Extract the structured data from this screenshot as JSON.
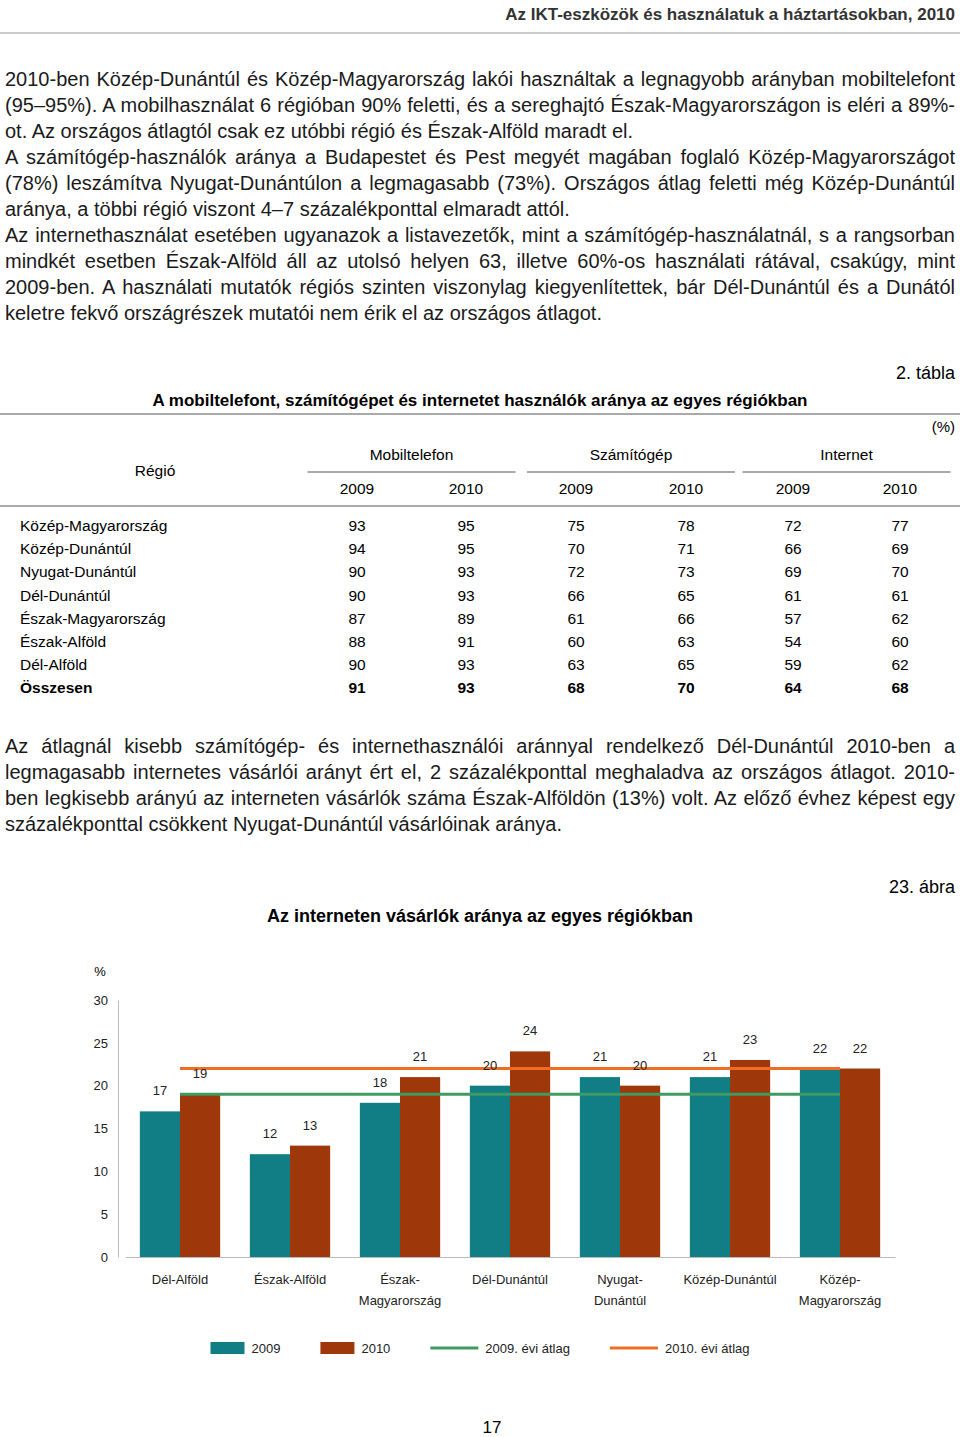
{
  "header": {
    "title": "Az IKT-eszközök és használatuk a háztartásokban, 2010"
  },
  "paragraphs": [
    "2010-ben Közép-Dunántúl és Közép-Magyarország lakói használtak a legnagyobb arányban mobiltelefont (95–95%). A mobilhasználat 6 régióban 90% feletti, és a sereghajtó Észak-Magyarországon is eléri a 89%-ot. Az országos átlagtól csak ez utóbbi régió és Észak-Alföld maradt el.",
    "A számítógép-használók aránya a Budapestet és Pest megyét magában foglaló Közép-Magyarországot (78%) leszámítva Nyugat-Dunántúlon a legmagasabb (73%). Országos átlag feletti még Közép-Dunántúl aránya, a többi régió viszont 4–7 százalékponttal elmaradt attól.",
    "Az internethasználat esetében ugyanazok a listavezetők, mint a számítógép-használatnál, s a rangsorban mindkét esetben Észak-Alföld áll az utolsó helyen 63, illetve 60%-os használati rátával, csakúgy, mint 2009-ben. A használati mutatók régiós szinten viszonylag kiegyenlítettek, bár Dél-Dunántúl és a Dunától keletre fekvő országrészek mutatói nem érik el az országos átlagot."
  ],
  "table": {
    "number": "2. tábla",
    "title": "A mobiltelefont, számítógépet és internetet használók aránya az egyes régiókban",
    "unit": "(%)",
    "region_header": "Régió",
    "groups": [
      "Mobiltelefon",
      "Számítógép",
      "Internet"
    ],
    "years": [
      2009,
      2010
    ],
    "rows": [
      [
        "Közép-Magyarország",
        93,
        95,
        75,
        78,
        72,
        77
      ],
      [
        "Közép-Dunántúl",
        94,
        95,
        70,
        71,
        66,
        69
      ],
      [
        "Nyugat-Dunántúl",
        90,
        93,
        72,
        73,
        69,
        70
      ],
      [
        "Dél-Dunántúl",
        90,
        93,
        66,
        65,
        61,
        61
      ],
      [
        "Észak-Magyarország",
        87,
        89,
        61,
        66,
        57,
        62
      ],
      [
        "Észak-Alföld",
        88,
        91,
        60,
        63,
        54,
        60
      ],
      [
        "Dél-Alföld",
        90,
        93,
        63,
        65,
        59,
        62
      ]
    ],
    "total": [
      "Összesen",
      91,
      93,
      68,
      70,
      64,
      68
    ]
  },
  "paragraphs_after_table": [
    "Az átlagnál kisebb számítógép- és internethasználói aránnyal rendelkező Dél-Dunántúl 2010-ben a legmagasabb internetes vásárlói arányt ért el, 2 százalékponttal meghaladva az országos átlagot. 2010-ben legkisebb arányú az interneten vásárlók száma Észak-Alföldön (13%) volt. Az előző évhez képest egy százalékponttal csökkent Nyugat-Dunántúl vásárlóinak aránya."
  ],
  "figure": {
    "number": "23. ábra"
  },
  "chart_data": {
    "type": "bar",
    "title": "Az interneten vásárlók aránya az egyes régiókban",
    "ylabel": "%",
    "categories": [
      "Dél-Alföld",
      "Észak-Alföld",
      "Észak-Magyarország",
      "Dél-Dunántúl",
      "Nyugat-Dunántúl",
      "Közép-Dunántúl",
      "Közép-Magyarország"
    ],
    "series": [
      {
        "name": "2009",
        "color": "#117e85",
        "data_labels": true,
        "values": [
          17,
          12,
          18,
          20,
          21,
          21,
          22
        ]
      },
      {
        "name": "2010",
        "color": "#9e370a",
        "data_labels": true,
        "values": [
          19,
          13,
          21,
          24,
          20,
          23,
          22
        ]
      },
      {
        "name": "2009. évi átlag",
        "type": "line",
        "color": "#3f9b62",
        "data_labels": false,
        "values": [
          19,
          19,
          19,
          19,
          19,
          19,
          19
        ]
      },
      {
        "name": "2010. évi átlag",
        "type": "line",
        "color": "#f26d21",
        "data_labels": false,
        "values": [
          22,
          22,
          22,
          22,
          22,
          22,
          22
        ]
      }
    ],
    "ylim": [
      0,
      30
    ],
    "yticks": [
      0,
      5,
      10,
      15,
      20,
      25,
      30
    ],
    "grid": false,
    "legend": "bottom"
  },
  "page_number": 17
}
